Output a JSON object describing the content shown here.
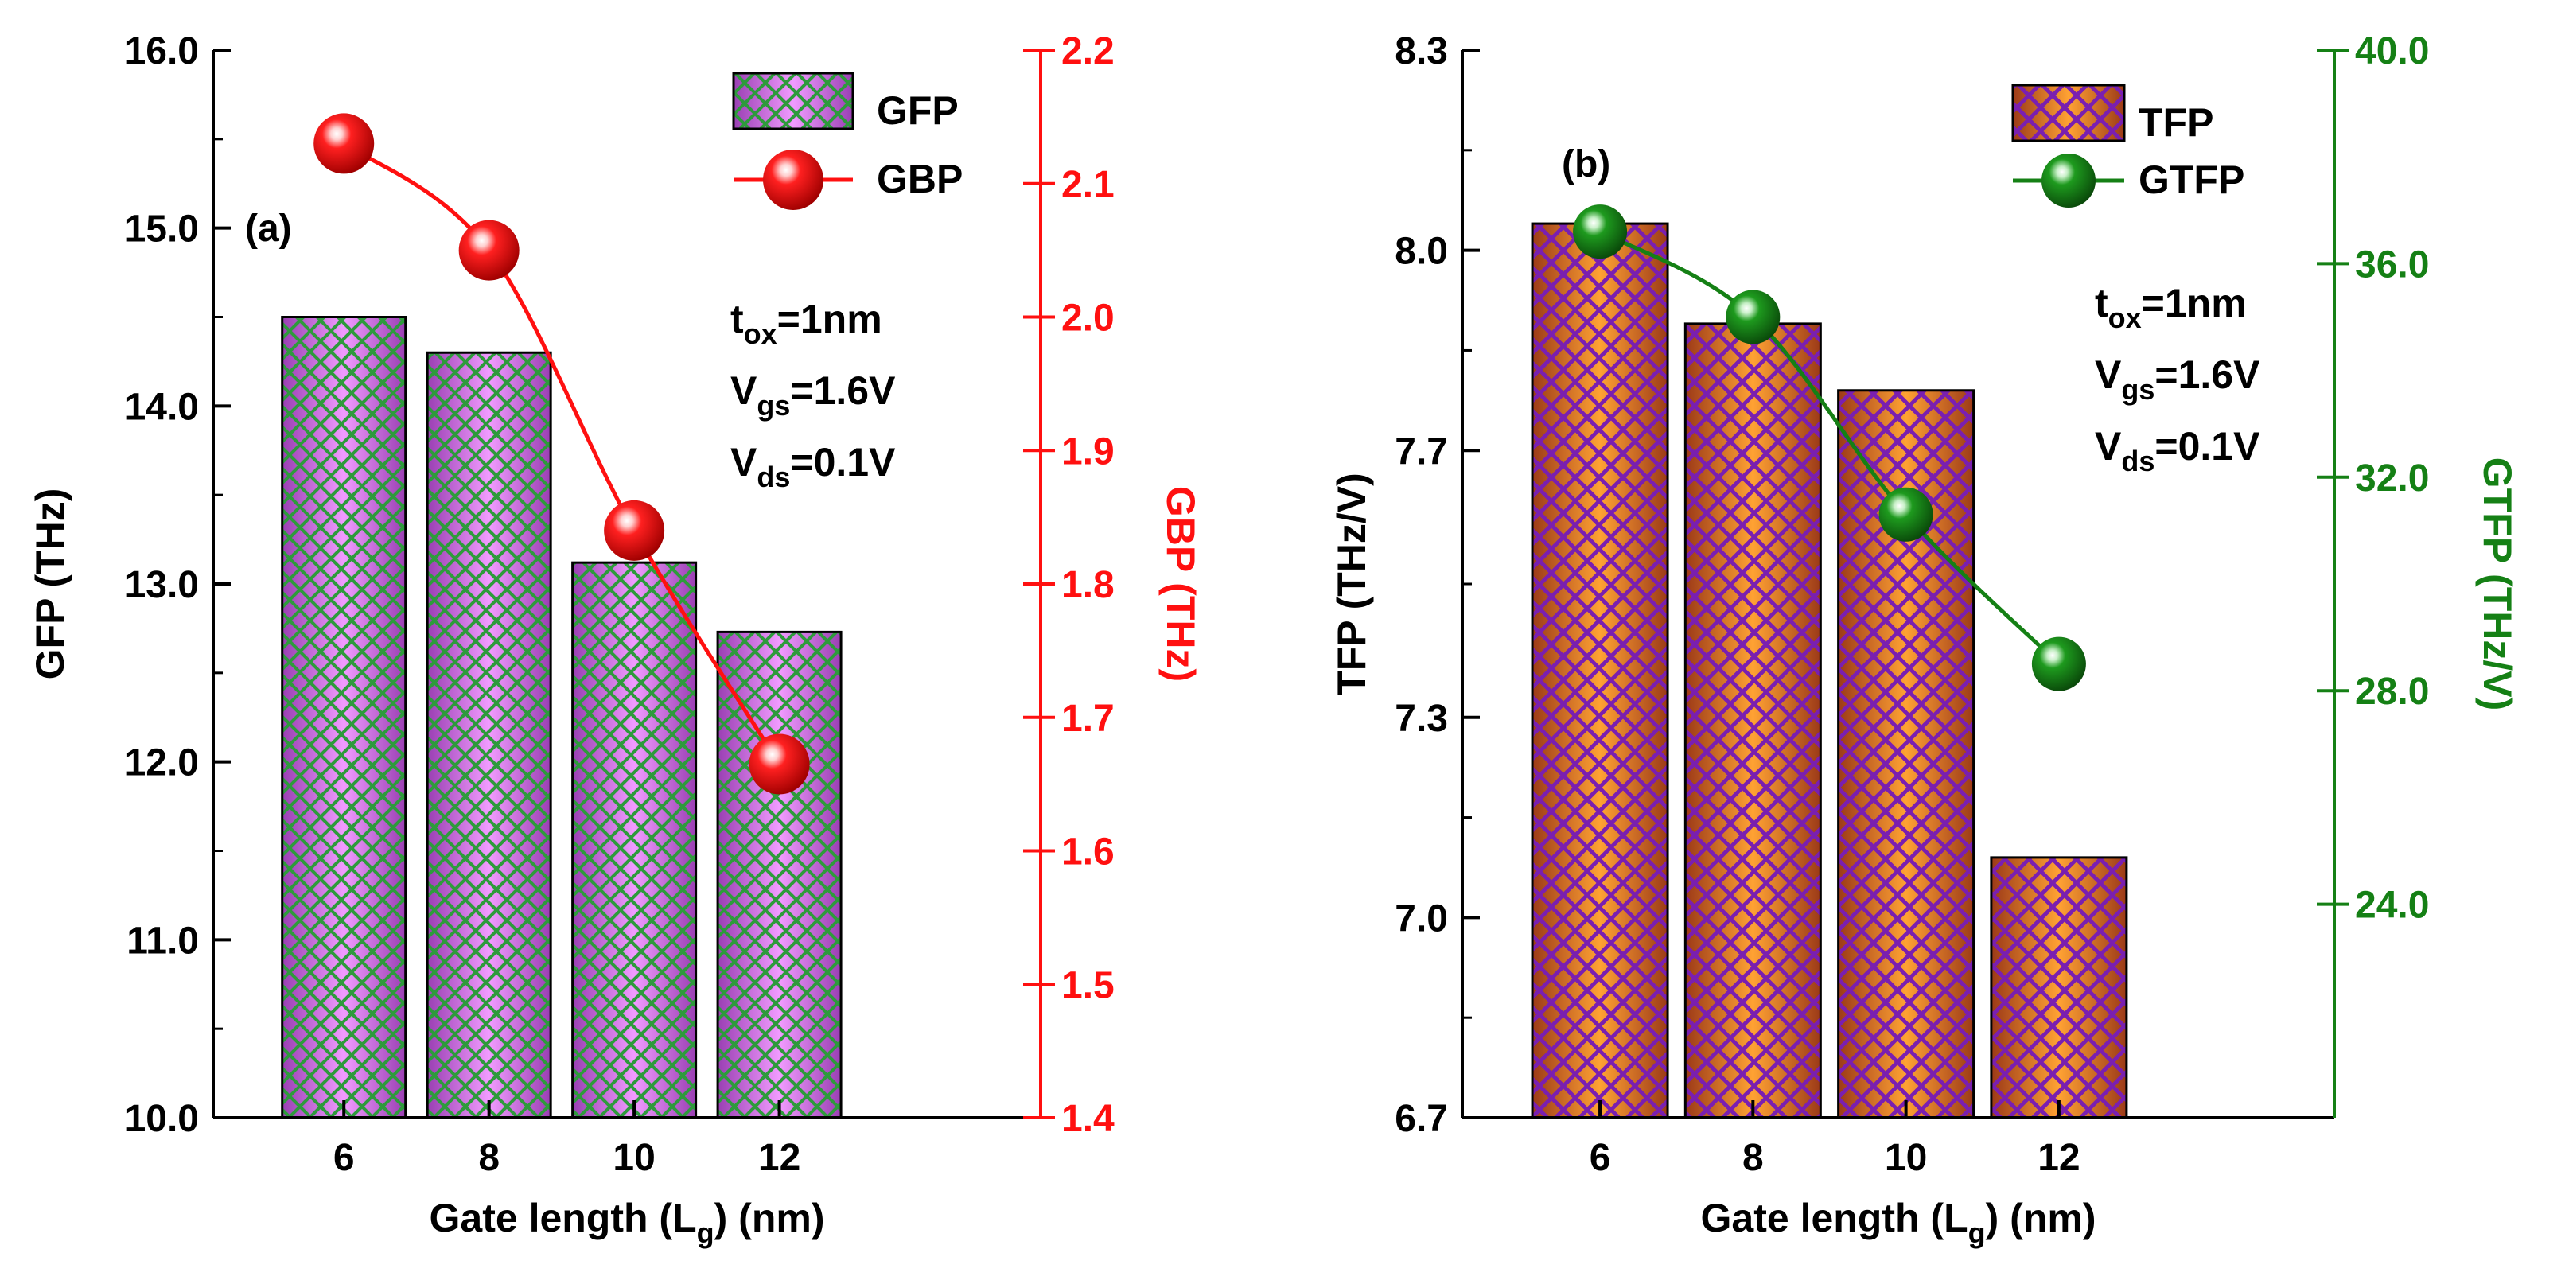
{
  "chart_data": [
    {
      "type": "bar",
      "panel_label": "(a)",
      "categories": [
        "6",
        "8",
        "10",
        "12"
      ],
      "xlabel": "Gate length (L",
      "xlabel_sub": "g",
      "xlabel_tail": ") (nm)",
      "xlim": [
        4.2,
        15.6
      ],
      "series": [
        {
          "name": "GFP",
          "axis": "left",
          "kind": "bar",
          "values": [
            14.5,
            14.3,
            13.12,
            12.73
          ]
        },
        {
          "name": "GBP",
          "axis": "right",
          "kind": "line",
          "values": [
            2.13,
            2.05,
            1.84,
            1.665
          ]
        }
      ],
      "left_axis": {
        "label": "GFP (THz)",
        "range": [
          10.0,
          16.0
        ],
        "ticks": [
          "10.0",
          "11.0",
          "12.0",
          "13.0",
          "14.0",
          "15.0",
          "16.0"
        ]
      },
      "right_axis": {
        "label": "GBP (THz)",
        "range": [
          1.4,
          2.2
        ],
        "ticks": [
          "1.4",
          "1.5",
          "1.6",
          "1.7",
          "1.8",
          "1.9",
          "2.0",
          "2.1",
          "2.2"
        ],
        "color": "#ff1010"
      },
      "params": [
        {
          "base": "t",
          "sub": "ox",
          "val": "=1nm"
        },
        {
          "base": "V",
          "sub": "gs",
          "val": "=1.6V"
        },
        {
          "base": "V",
          "sub": "ds",
          "val": "=0.1V"
        }
      ],
      "legend_position": "top-right",
      "colors": {
        "bar": "#dd77ee",
        "hatch": "#2e9a3c",
        "line": "#ff1010"
      }
    },
    {
      "type": "bar",
      "panel_label": "(b)",
      "categories": [
        "6",
        "8",
        "10",
        "12"
      ],
      "xlabel": "Gate length (L",
      "xlabel_sub": "g",
      "xlabel_tail": ") (nm)",
      "xlim": [
        4.2,
        15.6
      ],
      "series": [
        {
          "name": "TFP",
          "axis": "left",
          "kind": "bar",
          "values": [
            8.04,
            7.89,
            7.79,
            7.09
          ]
        },
        {
          "name": "GTFP",
          "axis": "right",
          "kind": "line",
          "values": [
            36.6,
            35.0,
            31.3,
            28.5
          ]
        }
      ],
      "left_axis": {
        "label": "TFP (THz/V)",
        "range": [
          6.7,
          8.3
        ],
        "ticks": [
          "6.7",
          "7.0",
          "7.3",
          "7.7",
          "8.0",
          "8.3"
        ]
      },
      "right_axis": {
        "label": "GTFP (THz/V)",
        "range": [
          20.0,
          40.0
        ],
        "ticks": [
          "24.0",
          "28.0",
          "32.0",
          "36.0",
          "40.0"
        ],
        "color": "#158015"
      },
      "params": [
        {
          "base": "t",
          "sub": "ox",
          "val": "=1nm"
        },
        {
          "base": "V",
          "sub": "gs",
          "val": "=1.6V"
        },
        {
          "base": "V",
          "sub": "ds",
          "val": "=0.1V"
        }
      ],
      "legend_position": "top-right",
      "colors": {
        "bar": "#ff8a1a",
        "hatch": "#7a1fb0",
        "line": "#158015"
      }
    }
  ]
}
